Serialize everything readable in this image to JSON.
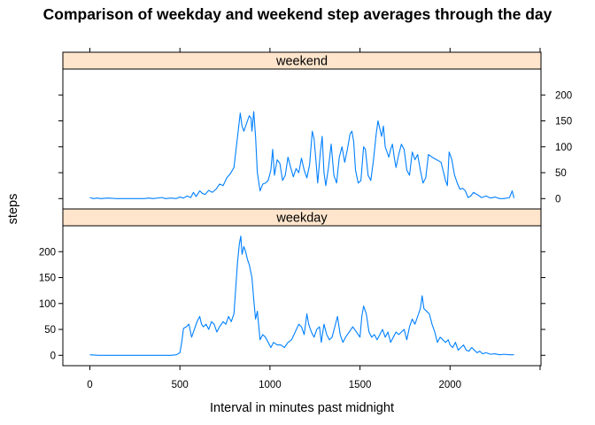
{
  "chart_data": {
    "type": "line",
    "title": "Comparison of weekday and weekend step averages through the day",
    "xlabel": "Interval in minutes past midnight",
    "ylabel": "steps",
    "xlim": [
      -150,
      2505
    ],
    "ylim": [
      -20,
      250
    ],
    "x_ticks": [
      0,
      500,
      1000,
      1500,
      2000
    ],
    "y_ticks": [
      0,
      50,
      100,
      150,
      200
    ],
    "line_color": "#0080ff",
    "strip_color": "#ffe5cc",
    "panels": [
      {
        "name": "weekend",
        "y_axis_side": "right",
        "points": [
          [
            0,
            2
          ],
          [
            20,
            0
          ],
          [
            40,
            1
          ],
          [
            60,
            0
          ],
          [
            100,
            1
          ],
          [
            150,
            0
          ],
          [
            200,
            0
          ],
          [
            250,
            0
          ],
          [
            300,
            0
          ],
          [
            330,
            1
          ],
          [
            350,
            0
          ],
          [
            400,
            2
          ],
          [
            420,
            0
          ],
          [
            450,
            1
          ],
          [
            480,
            0
          ],
          [
            500,
            3
          ],
          [
            520,
            1
          ],
          [
            540,
            5
          ],
          [
            560,
            2
          ],
          [
            575,
            12
          ],
          [
            590,
            4
          ],
          [
            610,
            15
          ],
          [
            625,
            10
          ],
          [
            640,
            8
          ],
          [
            660,
            16
          ],
          [
            680,
            12
          ],
          [
            700,
            18
          ],
          [
            720,
            28
          ],
          [
            740,
            25
          ],
          [
            760,
            40
          ],
          [
            780,
            48
          ],
          [
            800,
            60
          ],
          [
            810,
            90
          ],
          [
            825,
            135
          ],
          [
            835,
            165
          ],
          [
            845,
            140
          ],
          [
            855,
            130
          ],
          [
            870,
            145
          ],
          [
            885,
            160
          ],
          [
            895,
            155
          ],
          [
            900,
            130
          ],
          [
            910,
            168
          ],
          [
            920,
            120
          ],
          [
            930,
            50
          ],
          [
            945,
            15
          ],
          [
            960,
            28
          ],
          [
            975,
            30
          ],
          [
            990,
            35
          ],
          [
            1005,
            55
          ],
          [
            1015,
            95
          ],
          [
            1025,
            45
          ],
          [
            1040,
            75
          ],
          [
            1055,
            68
          ],
          [
            1070,
            35
          ],
          [
            1085,
            45
          ],
          [
            1100,
            80
          ],
          [
            1115,
            60
          ],
          [
            1130,
            42
          ],
          [
            1145,
            58
          ],
          [
            1160,
            50
          ],
          [
            1175,
            78
          ],
          [
            1190,
            55
          ],
          [
            1205,
            40
          ],
          [
            1220,
            65
          ],
          [
            1235,
            130
          ],
          [
            1245,
            115
          ],
          [
            1255,
            75
          ],
          [
            1265,
            30
          ],
          [
            1280,
            90
          ],
          [
            1290,
            120
          ],
          [
            1300,
            50
          ],
          [
            1310,
            25
          ],
          [
            1325,
            60
          ],
          [
            1340,
            105
          ],
          [
            1355,
            45
          ],
          [
            1370,
            30
          ],
          [
            1385,
            80
          ],
          [
            1400,
            100
          ],
          [
            1415,
            70
          ],
          [
            1430,
            95
          ],
          [
            1445,
            125
          ],
          [
            1455,
            130
          ],
          [
            1465,
            110
          ],
          [
            1475,
            55
          ],
          [
            1490,
            30
          ],
          [
            1505,
            35
          ],
          [
            1520,
            100
          ],
          [
            1530,
            95
          ],
          [
            1545,
            45
          ],
          [
            1560,
            35
          ],
          [
            1575,
            75
          ],
          [
            1590,
            125
          ],
          [
            1600,
            150
          ],
          [
            1610,
            135
          ],
          [
            1620,
            120
          ],
          [
            1630,
            140
          ],
          [
            1640,
            100
          ],
          [
            1650,
            90
          ],
          [
            1660,
            80
          ],
          [
            1670,
            95
          ],
          [
            1680,
            105
          ],
          [
            1690,
            80
          ],
          [
            1700,
            60
          ],
          [
            1715,
            85
          ],
          [
            1730,
            105
          ],
          [
            1745,
            95
          ],
          [
            1760,
            55
          ],
          [
            1775,
            45
          ],
          [
            1790,
            90
          ],
          [
            1805,
            75
          ],
          [
            1820,
            85
          ],
          [
            1835,
            55
          ],
          [
            1850,
            30
          ],
          [
            1865,
            40
          ],
          [
            1880,
            85
          ],
          [
            1900,
            80
          ],
          [
            1925,
            75
          ],
          [
            1950,
            70
          ],
          [
            1975,
            35
          ],
          [
            1985,
            25
          ],
          [
            1995,
            90
          ],
          [
            2010,
            75
          ],
          [
            2025,
            45
          ],
          [
            2040,
            30
          ],
          [
            2055,
            18
          ],
          [
            2070,
            20
          ],
          [
            2085,
            15
          ],
          [
            2100,
            2
          ],
          [
            2115,
            5
          ],
          [
            2130,
            12
          ],
          [
            2150,
            8
          ],
          [
            2175,
            2
          ],
          [
            2200,
            5
          ],
          [
            2225,
            1
          ],
          [
            2250,
            3
          ],
          [
            2275,
            0
          ],
          [
            2300,
            0
          ],
          [
            2330,
            2
          ],
          [
            2345,
            15
          ],
          [
            2355,
            1
          ]
        ]
      },
      {
        "name": "weekday",
        "y_axis_side": "left",
        "points": [
          [
            0,
            1
          ],
          [
            50,
            0
          ],
          [
            100,
            0
          ],
          [
            150,
            0
          ],
          [
            200,
            0
          ],
          [
            250,
            0
          ],
          [
            300,
            0
          ],
          [
            350,
            0
          ],
          [
            400,
            0
          ],
          [
            450,
            0
          ],
          [
            480,
            1
          ],
          [
            500,
            5
          ],
          [
            510,
            25
          ],
          [
            520,
            52
          ],
          [
            535,
            55
          ],
          [
            550,
            60
          ],
          [
            565,
            35
          ],
          [
            580,
            50
          ],
          [
            595,
            65
          ],
          [
            610,
            75
          ],
          [
            620,
            60
          ],
          [
            630,
            55
          ],
          [
            645,
            60
          ],
          [
            660,
            50
          ],
          [
            675,
            65
          ],
          [
            690,
            60
          ],
          [
            705,
            45
          ],
          [
            720,
            55
          ],
          [
            740,
            65
          ],
          [
            755,
            60
          ],
          [
            770,
            75
          ],
          [
            785,
            65
          ],
          [
            800,
            80
          ],
          [
            810,
            130
          ],
          [
            820,
            180
          ],
          [
            830,
            215
          ],
          [
            838,
            230
          ],
          [
            845,
            195
          ],
          [
            855,
            210
          ],
          [
            865,
            200
          ],
          [
            875,
            185
          ],
          [
            885,
            175
          ],
          [
            900,
            150
          ],
          [
            912,
            100
          ],
          [
            920,
            70
          ],
          [
            930,
            85
          ],
          [
            945,
            30
          ],
          [
            960,
            40
          ],
          [
            975,
            35
          ],
          [
            990,
            25
          ],
          [
            1005,
            15
          ],
          [
            1020,
            25
          ],
          [
            1040,
            20
          ],
          [
            1060,
            20
          ],
          [
            1080,
            15
          ],
          [
            1100,
            25
          ],
          [
            1120,
            30
          ],
          [
            1140,
            45
          ],
          [
            1160,
            60
          ],
          [
            1175,
            55
          ],
          [
            1190,
            40
          ],
          [
            1205,
            80
          ],
          [
            1215,
            60
          ],
          [
            1230,
            45
          ],
          [
            1245,
            35
          ],
          [
            1260,
            50
          ],
          [
            1275,
            55
          ],
          [
            1285,
            25
          ],
          [
            1300,
            60
          ],
          [
            1315,
            40
          ],
          [
            1330,
            30
          ],
          [
            1345,
            35
          ],
          [
            1360,
            55
          ],
          [
            1375,
            75
          ],
          [
            1390,
            40
          ],
          [
            1405,
            25
          ],
          [
            1420,
            35
          ],
          [
            1440,
            45
          ],
          [
            1460,
            55
          ],
          [
            1480,
            45
          ],
          [
            1500,
            35
          ],
          [
            1510,
            75
          ],
          [
            1520,
            95
          ],
          [
            1535,
            80
          ],
          [
            1550,
            45
          ],
          [
            1565,
            35
          ],
          [
            1580,
            40
          ],
          [
            1595,
            30
          ],
          [
            1610,
            40
          ],
          [
            1625,
            50
          ],
          [
            1640,
            35
          ],
          [
            1655,
            45
          ],
          [
            1670,
            25
          ],
          [
            1685,
            35
          ],
          [
            1700,
            45
          ],
          [
            1715,
            40
          ],
          [
            1730,
            45
          ],
          [
            1745,
            50
          ],
          [
            1760,
            30
          ],
          [
            1775,
            55
          ],
          [
            1790,
            70
          ],
          [
            1805,
            60
          ],
          [
            1820,
            75
          ],
          [
            1835,
            90
          ],
          [
            1845,
            115
          ],
          [
            1855,
            90
          ],
          [
            1870,
            85
          ],
          [
            1885,
            80
          ],
          [
            1900,
            60
          ],
          [
            1915,
            45
          ],
          [
            1930,
            25
          ],
          [
            1945,
            35
          ],
          [
            1960,
            30
          ],
          [
            1975,
            25
          ],
          [
            1990,
            30
          ],
          [
            2000,
            20
          ],
          [
            2015,
            15
          ],
          [
            2030,
            25
          ],
          [
            2045,
            10
          ],
          [
            2060,
            15
          ],
          [
            2075,
            20
          ],
          [
            2090,
            10
          ],
          [
            2105,
            8
          ],
          [
            2120,
            15
          ],
          [
            2135,
            10
          ],
          [
            2150,
            5
          ],
          [
            2165,
            8
          ],
          [
            2180,
            3
          ],
          [
            2200,
            5
          ],
          [
            2225,
            2
          ],
          [
            2250,
            3
          ],
          [
            2275,
            1
          ],
          [
            2300,
            2
          ],
          [
            2330,
            1
          ],
          [
            2355,
            1
          ]
        ]
      }
    ]
  }
}
